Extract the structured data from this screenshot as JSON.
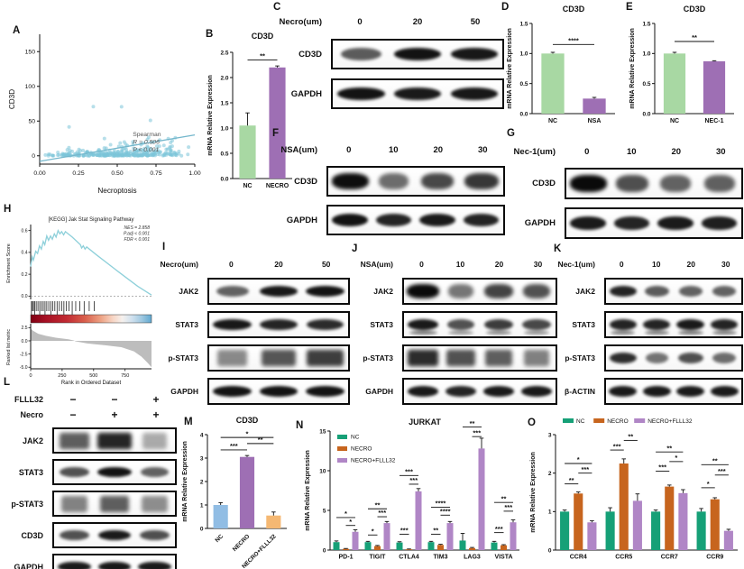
{
  "panel_labels": {
    "A": "A",
    "B": "B",
    "C": "C",
    "D": "D",
    "E": "E",
    "F": "F",
    "G": "G",
    "H": "H",
    "I": "I",
    "J": "J",
    "K": "K",
    "L": "L",
    "M": "M",
    "N": "N",
    "O": "O"
  },
  "chart_data": {
    "A": {
      "type": "scatter",
      "xlabel": "Necroptosis",
      "ylabel": "CD3D",
      "xlim": [
        0,
        1.0
      ],
      "ylim": [
        -12,
        175
      ],
      "xticks": [
        0.0,
        0.25,
        0.5,
        0.75,
        1.0
      ],
      "yticks": [
        0,
        50,
        100,
        150
      ],
      "n_points": 310,
      "point_color": "#7cc4d8",
      "trend": {
        "x": [
          0,
          1
        ],
        "y": [
          -8,
          30
        ]
      },
      "annotation": [
        "Spearman",
        "R = 0.506",
        "P < 0.001"
      ]
    },
    "B": {
      "type": "bar",
      "title": "CD3D",
      "ylabel": "mRNA Relative Expression",
      "ylim": [
        0,
        2.5
      ],
      "yticks": [
        0,
        0.5,
        1.0,
        1.5,
        2.0,
        2.5
      ],
      "ytick_decimals": 1,
      "categories": [
        "NC",
        "NECRO"
      ],
      "values": [
        1.05,
        2.2
      ],
      "errors": [
        0.25,
        0.03
      ],
      "colors": [
        "#a8d8a3",
        "#9e6fb4"
      ],
      "sig": [
        {
          "from": 0,
          "to": 1,
          "y": 2.35,
          "label": "**"
        }
      ]
    },
    "D": {
      "type": "bar",
      "title": "CD3D",
      "ylabel": "mRNA Relative Expression",
      "ylim": [
        0,
        1.5
      ],
      "yticks": [
        0,
        0.5,
        1.0,
        1.5
      ],
      "ytick_decimals": 1,
      "categories": [
        "NC",
        "NSA"
      ],
      "values": [
        1.0,
        0.25
      ],
      "errors": [
        0.02,
        0.02
      ],
      "colors": [
        "#a8d8a3",
        "#9e6fb4"
      ],
      "sig": [
        {
          "from": 0,
          "to": 1,
          "y": 1.15,
          "label": "****"
        }
      ]
    },
    "E": {
      "type": "bar",
      "title": "CD3D",
      "ylabel": "mRNA Relative Expression",
      "ylim": [
        0,
        1.5
      ],
      "yticks": [
        0,
        0.5,
        1.0,
        1.5
      ],
      "ytick_decimals": 1,
      "categories": [
        "NC",
        "NEC-1"
      ],
      "values": [
        1.0,
        0.87
      ],
      "errors": [
        0.02,
        0.01
      ],
      "colors": [
        "#a8d8a3",
        "#9e6fb4"
      ],
      "sig": [
        {
          "from": 0,
          "to": 1,
          "y": 1.2,
          "label": "**"
        }
      ]
    },
    "H": {
      "type": "gsea",
      "title": "[KEGG] Jak Stat Signaling Pathway",
      "stats": [
        "NES = 2.858",
        "P.adj < 0.001",
        "FDR < 0.001"
      ],
      "es_ylabel": "Enrichment Score",
      "rank_ylabel": "Ranked list metric",
      "xlabel": "Rank in Ordered Dataset",
      "es_yticks": [
        0.0,
        0.2,
        0.4,
        0.6
      ],
      "rank_yticks": [
        2.5,
        0.0,
        -2.5,
        -5.0
      ],
      "xticks": [
        0,
        250,
        500,
        750
      ],
      "xmax": 960,
      "line_color": "#8ed0da",
      "es_curve": [
        [
          0,
          0.27
        ],
        [
          12,
          0.36
        ],
        [
          22,
          0.33
        ],
        [
          40,
          0.41
        ],
        [
          55,
          0.39
        ],
        [
          70,
          0.46
        ],
        [
          85,
          0.43
        ],
        [
          100,
          0.5
        ],
        [
          112,
          0.47
        ],
        [
          128,
          0.55
        ],
        [
          142,
          0.51
        ],
        [
          158,
          0.55
        ],
        [
          172,
          0.52
        ],
        [
          188,
          0.57
        ],
        [
          202,
          0.54
        ],
        [
          218,
          0.6
        ],
        [
          232,
          0.57
        ],
        [
          246,
          0.59
        ],
        [
          262,
          0.56
        ],
        [
          276,
          0.59
        ],
        [
          330,
          0.54
        ],
        [
          395,
          0.47
        ],
        [
          405,
          0.44
        ],
        [
          418,
          0.46
        ],
        [
          432,
          0.43
        ],
        [
          445,
          0.45
        ],
        [
          520,
          0.38
        ],
        [
          700,
          0.22
        ],
        [
          850,
          0.09
        ],
        [
          960,
          0.01
        ]
      ],
      "hits": [
        6,
        14,
        22,
        32,
        44,
        58,
        72,
        86,
        100,
        114,
        128,
        144,
        160,
        176,
        192,
        210,
        228,
        246,
        264,
        284,
        305,
        330,
        358,
        390,
        425,
        465,
        505
      ],
      "rank_curve": [
        [
          0,
          2.3
        ],
        [
          20,
          1.9
        ],
        [
          60,
          1.35
        ],
        [
          120,
          0.95
        ],
        [
          200,
          0.6
        ],
        [
          300,
          0.3
        ],
        [
          345,
          0.05
        ],
        [
          355,
          -0.1
        ],
        [
          450,
          -0.5
        ],
        [
          600,
          -0.85
        ],
        [
          720,
          -1.2
        ],
        [
          820,
          -2.0
        ],
        [
          880,
          -3.0
        ],
        [
          930,
          -4.2
        ],
        [
          960,
          -5.0
        ]
      ]
    },
    "M": {
      "type": "bar",
      "title": "CD3D",
      "ylabel": "mRNA Relative Expression",
      "ylim": [
        0,
        4
      ],
      "yticks": [
        0,
        1,
        2,
        3,
        4
      ],
      "ytick_decimals": 0,
      "categories": [
        "NC",
        "NECRO",
        "NECRO+FLLL32"
      ],
      "values": [
        1.0,
        3.05,
        0.55
      ],
      "errors": [
        0.1,
        0.06,
        0.15
      ],
      "colors": [
        "#91bde4",
        "#9e6fb4",
        "#f5b873"
      ],
      "rotate_labels": true,
      "sig": [
        {
          "from": 0,
          "to": 1,
          "y": 3.35,
          "label": "***"
        },
        {
          "from": 1,
          "to": 2,
          "y": 3.62,
          "label": "**"
        },
        {
          "from": 0,
          "to": 2,
          "y": 3.88,
          "label": "*"
        }
      ]
    },
    "N": {
      "type": "bar",
      "title": "JURKAT",
      "ylabel": "mRNA Relative Expression",
      "ylim": [
        0,
        15
      ],
      "yticks": [
        0,
        5,
        10,
        15
      ],
      "ytick_decimals": 0,
      "categories": [
        "PD-1",
        "TIGIT",
        "CTLA4",
        "TIM3",
        "LAG3",
        "VISTA"
      ],
      "series": [
        {
          "name": "NC",
          "color": "#16a077",
          "values": [
            1.0,
            1.0,
            0.95,
            1.0,
            1.2,
            0.95
          ],
          "errors": [
            0.15,
            0.1,
            0.1,
            0.1,
            0.9,
            0.15
          ]
        },
        {
          "name": "NECRO",
          "color": "#c7651e",
          "values": [
            0.15,
            0.5,
            0.1,
            0.65,
            0.25,
            0.6
          ],
          "errors": [
            0.05,
            0.08,
            0.04,
            0.08,
            0.08,
            0.08
          ]
        },
        {
          "name": "NECRO+FLLL32",
          "color": "#b086c6",
          "values": [
            2.3,
            3.4,
            7.4,
            3.4,
            12.8,
            3.5
          ],
          "errors": [
            0.25,
            0.2,
            0.35,
            0.2,
            1.3,
            0.3
          ]
        }
      ],
      "legend_pos": "inside-vertical",
      "sig": [
        {
          "from": 1,
          "to": 2,
          "y": 3.1,
          "label": "*"
        },
        {
          "from": 0,
          "to": 2,
          "y": 4.1,
          "label": "*"
        },
        {
          "from": 3,
          "to": 4,
          "y": 1.9,
          "label": "*"
        },
        {
          "from": 4,
          "to": 5,
          "y": 4.2,
          "label": "***"
        },
        {
          "from": 3,
          "to": 5,
          "y": 5.2,
          "label": "**"
        },
        {
          "from": 6,
          "to": 7,
          "y": 2.0,
          "label": "***"
        },
        {
          "from": 7,
          "to": 8,
          "y": 8.3,
          "label": "***"
        },
        {
          "from": 6,
          "to": 8,
          "y": 9.4,
          "label": "***"
        },
        {
          "from": 9,
          "to": 10,
          "y": 2.0,
          "label": "**"
        },
        {
          "from": 10,
          "to": 11,
          "y": 4.4,
          "label": "****"
        },
        {
          "from": 9,
          "to": 11,
          "y": 5.4,
          "label": "****"
        },
        {
          "from": 13,
          "to": 14,
          "y": 14.3,
          "label": "***"
        },
        {
          "from": 12,
          "to": 14,
          "y": 15.5,
          "label": "**"
        },
        {
          "from": 15,
          "to": 16,
          "y": 2.2,
          "label": "***"
        },
        {
          "from": 16,
          "to": 17,
          "y": 4.9,
          "label": "***"
        },
        {
          "from": 15,
          "to": 17,
          "y": 6.0,
          "label": "**"
        }
      ]
    },
    "O": {
      "type": "bar",
      "title": "",
      "ylabel": "mRNA Relative Expression",
      "ylim": [
        0,
        3
      ],
      "yticks": [
        0,
        1,
        2,
        3
      ],
      "ytick_decimals": 0,
      "categories": [
        "CCR4",
        "CCR5",
        "CCR7",
        "CCR9"
      ],
      "series": [
        {
          "name": "NC",
          "color": "#16a077",
          "values": [
            1.0,
            1.0,
            1.0,
            1.0
          ],
          "errors": [
            0.04,
            0.1,
            0.04,
            0.08
          ]
        },
        {
          "name": "NECRO",
          "color": "#c7651e",
          "values": [
            1.47,
            2.25,
            1.65,
            1.32
          ],
          "errors": [
            0.04,
            0.12,
            0.04,
            0.04
          ]
        },
        {
          "name": "NECRO+FLLL32",
          "color": "#b086c6",
          "values": [
            0.72,
            1.28,
            1.48,
            0.5
          ],
          "errors": [
            0.04,
            0.18,
            0.09,
            0.04
          ]
        }
      ],
      "legend_pos": "top-horizontal",
      "sig": [
        {
          "from": 0,
          "to": 1,
          "y": 1.72,
          "label": "**"
        },
        {
          "from": 1,
          "to": 2,
          "y": 2.0,
          "label": "***"
        },
        {
          "from": 0,
          "to": 2,
          "y": 2.25,
          "label": "*"
        },
        {
          "from": 3,
          "to": 4,
          "y": 2.6,
          "label": "***"
        },
        {
          "from": 4,
          "to": 5,
          "y": 2.85,
          "label": "**"
        },
        {
          "from": 6,
          "to": 7,
          "y": 2.05,
          "label": "***"
        },
        {
          "from": 7,
          "to": 8,
          "y": 2.3,
          "label": "*"
        },
        {
          "from": 6,
          "to": 8,
          "y": 2.55,
          "label": "**"
        },
        {
          "from": 9,
          "to": 10,
          "y": 1.62,
          "label": "*"
        },
        {
          "from": 10,
          "to": 11,
          "y": 1.95,
          "label": "***"
        },
        {
          "from": 9,
          "to": 11,
          "y": 2.22,
          "label": "**"
        }
      ]
    }
  },
  "blots": {
    "C": {
      "conditions": [
        {
          "name": "Necro(um)",
          "values": [
            "0",
            "20",
            "50"
          ]
        }
      ],
      "rows": [
        {
          "protein": "CD3D",
          "style": "sharp",
          "bands": [
            0.55,
            0.95,
            0.92
          ]
        },
        {
          "protein": "GAPDH",
          "style": "sharp",
          "bands": [
            0.95,
            0.9,
            0.92
          ]
        }
      ]
    },
    "F": {
      "conditions": [
        {
          "name": "NSA(um)",
          "values": [
            "0",
            "10",
            "20",
            "30"
          ]
        }
      ],
      "rows": [
        {
          "protein": "CD3D",
          "style": "blob",
          "bands": [
            0.97,
            0.45,
            0.65,
            0.75
          ]
        },
        {
          "protein": "GAPDH",
          "style": "sharp",
          "bands": [
            0.95,
            0.85,
            0.9,
            0.85
          ]
        }
      ]
    },
    "G": {
      "conditions": [
        {
          "name": "Nec-1(um)",
          "values": [
            "0",
            "10",
            "20",
            "30"
          ]
        }
      ],
      "rows": [
        {
          "protein": "CD3D",
          "style": "blob",
          "bands": [
            1.0,
            0.62,
            0.5,
            0.52
          ]
        },
        {
          "protein": "GAPDH",
          "style": "sharp",
          "bands": [
            0.9,
            0.85,
            0.9,
            0.88
          ]
        }
      ]
    },
    "I": {
      "conditions": [
        {
          "name": "Necro(um)",
          "values": [
            "0",
            "20",
            "50"
          ]
        }
      ],
      "rows": [
        {
          "protein": "JAK2",
          "style": "sharp",
          "bands": [
            0.5,
            0.92,
            0.95
          ]
        },
        {
          "protein": "STAT3",
          "style": "sharp",
          "bands": [
            0.92,
            0.85,
            0.82
          ]
        },
        {
          "protein": "p-STAT3",
          "style": "smear",
          "bands": [
            0.35,
            0.65,
            0.8
          ]
        },
        {
          "protein": "GAPDH",
          "style": "sharp",
          "bands": [
            0.95,
            0.95,
            0.95
          ]
        }
      ]
    },
    "J": {
      "conditions": [
        {
          "name": "NSA(um)",
          "values": [
            "0",
            "10",
            "20",
            "30"
          ]
        }
      ],
      "rows": [
        {
          "protein": "JAK2",
          "style": "blob",
          "bands": [
            1.0,
            0.4,
            0.68,
            0.6
          ]
        },
        {
          "protein": "STAT3",
          "style": "double",
          "bands": [
            0.9,
            0.6,
            0.72,
            0.65
          ]
        },
        {
          "protein": "p-STAT3",
          "style": "smear",
          "bands": [
            0.9,
            0.68,
            0.6,
            0.4
          ]
        },
        {
          "protein": "GAPDH",
          "style": "sharp",
          "bands": [
            0.9,
            0.85,
            0.9,
            0.9
          ]
        }
      ]
    },
    "K": {
      "conditions": [
        {
          "name": "Nec-1(um)",
          "values": [
            "0",
            "10",
            "20",
            "30"
          ]
        }
      ],
      "rows": [
        {
          "protein": "JAK2",
          "style": "sharp",
          "bands": [
            0.85,
            0.55,
            0.5,
            0.5
          ]
        },
        {
          "protein": "STAT3",
          "style": "double",
          "bands": [
            0.85,
            0.85,
            0.9,
            0.85
          ]
        },
        {
          "protein": "p-STAT3",
          "style": "sharp",
          "bands": [
            0.8,
            0.42,
            0.62,
            0.45
          ]
        },
        {
          "protein": "β-ACTIN",
          "style": "sharp",
          "bands": [
            0.9,
            0.9,
            0.9,
            0.9
          ]
        }
      ]
    },
    "L": {
      "conditions": [
        {
          "name": "FLLL32",
          "values": [
            "−",
            "−",
            "+"
          ]
        },
        {
          "name": "Necro",
          "values": [
            "−",
            "+",
            "+"
          ]
        }
      ],
      "rows": [
        {
          "protein": "JAK2",
          "style": "smear",
          "bands": [
            0.6,
            0.95,
            0.15
          ]
        },
        {
          "protein": "STAT3",
          "style": "sharp",
          "bands": [
            0.6,
            0.95,
            0.5
          ]
        },
        {
          "protein": "p-STAT3",
          "style": "smear",
          "bands": [
            0.38,
            0.6,
            0.32
          ]
        },
        {
          "protein": "CD3D",
          "style": "sharp",
          "bands": [
            0.6,
            0.9,
            0.62
          ]
        },
        {
          "protein": "GAPDH",
          "style": "sharp",
          "bands": [
            0.9,
            0.92,
            0.9
          ]
        }
      ]
    }
  }
}
